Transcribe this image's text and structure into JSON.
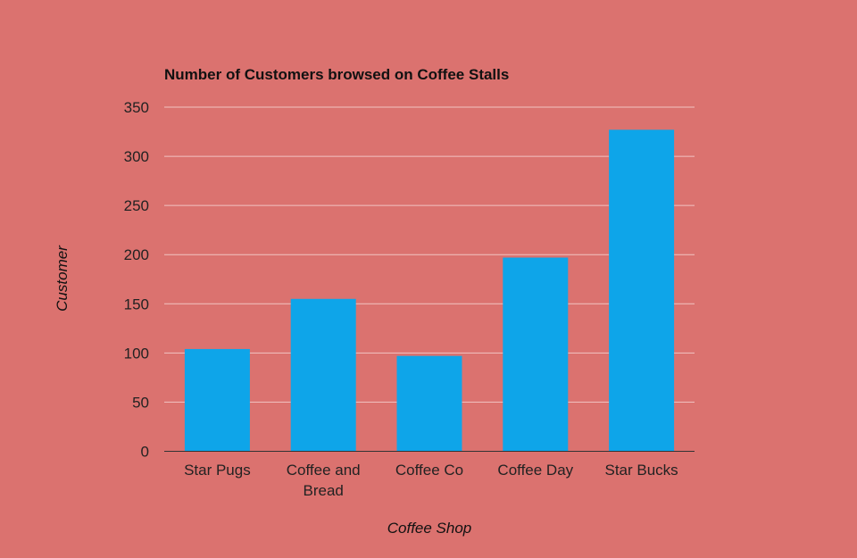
{
  "chart_data": {
    "type": "bar",
    "title": "Number of Customers browsed on Coffee Stalls",
    "xlabel": "Coffee Shop",
    "ylabel": "Customer",
    "categories": [
      [
        "Star Pugs"
      ],
      [
        "Coffee and",
        "Bread"
      ],
      [
        "Coffee Co"
      ],
      [
        "Coffee Day"
      ],
      [
        "Star Bucks"
      ]
    ],
    "values": [
      104,
      155,
      97,
      197,
      327
    ],
    "ylim": [
      0,
      350
    ],
    "yticks": [
      "0",
      "50",
      "100",
      "150",
      "200",
      "250",
      "300",
      "350"
    ],
    "ytick_values": [
      0,
      50,
      100,
      150,
      200,
      250,
      300,
      350
    ],
    "grid": true,
    "legend": "none"
  },
  "colors": {
    "background": "#db726f",
    "bar": "#0ea5e9",
    "grid": "#f1c4c2",
    "axis": "#333333"
  }
}
